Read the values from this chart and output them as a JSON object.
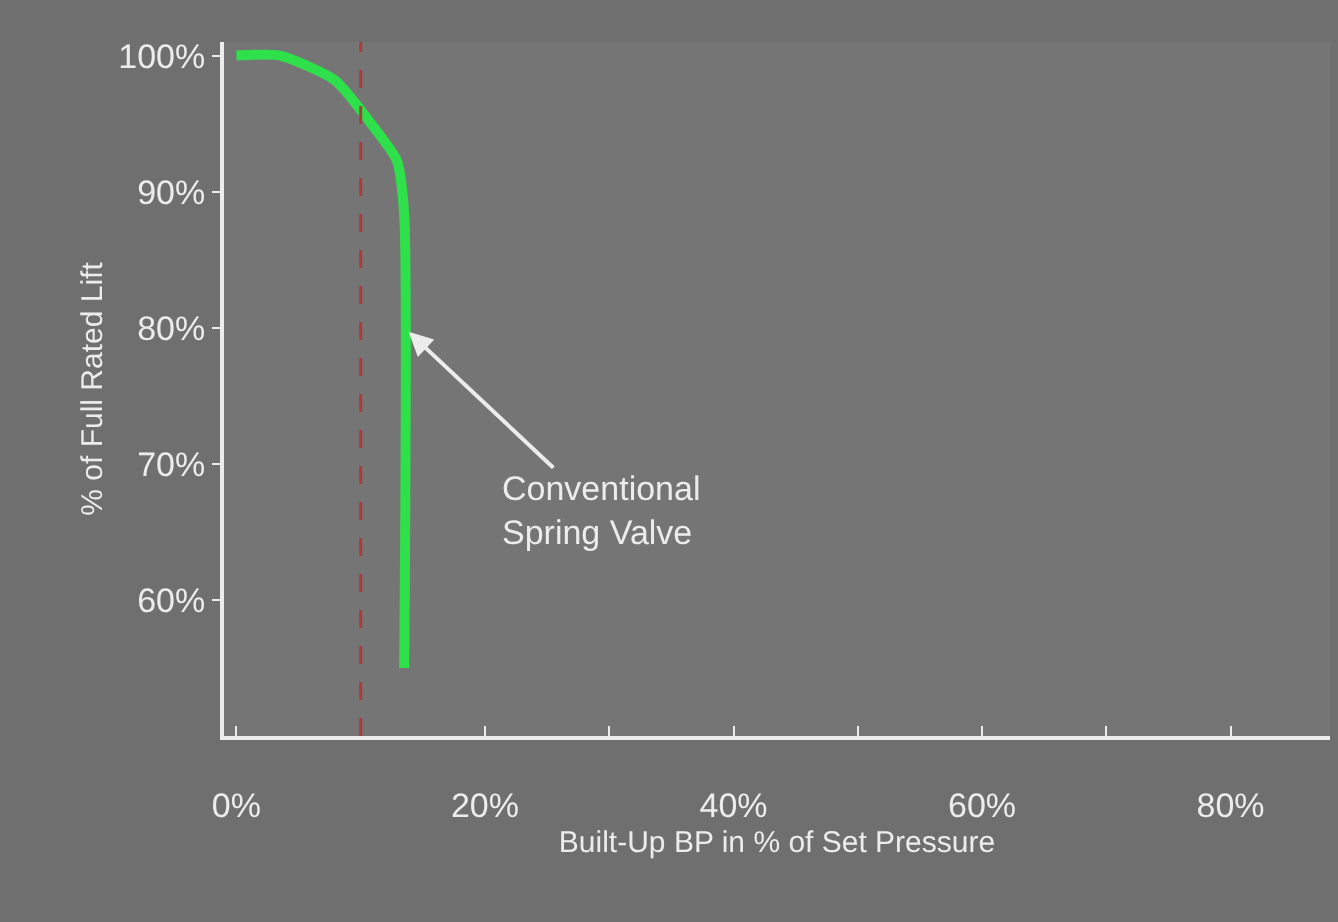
{
  "chart_data": {
    "type": "line",
    "xlabel": "Built-Up BP in % of Set Pressure",
    "ylabel": "% of Full Rated Lift",
    "x": [
      0,
      3.5,
      7.9,
      11,
      12.9,
      13.5,
      13.5
    ],
    "series": [
      {
        "color": "#2ee04a",
        "values": [
          100,
          100,
          98.2,
          94.8,
          92.3,
          88.3,
          55
        ]
      }
    ],
    "xlim": [
      -1,
      88
    ],
    "ylim": [
      50,
      101
    ],
    "xticks": [
      {
        "value": 0,
        "label": "0%"
      },
      {
        "value": 10,
        "label": null
      },
      {
        "value": 20,
        "label": "20%"
      },
      {
        "value": 30,
        "label": null
      },
      {
        "value": 40,
        "label": "40%"
      },
      {
        "value": 50,
        "label": null
      },
      {
        "value": 60,
        "label": "60%"
      },
      {
        "value": 70,
        "label": null
      },
      {
        "value": 80,
        "label": "80%"
      }
    ],
    "yticks": [
      {
        "value": 60,
        "label": "60%"
      },
      {
        "value": 70,
        "label": "70%"
      },
      {
        "value": 80,
        "label": "80%"
      },
      {
        "value": 90,
        "label": "90%"
      },
      {
        "value": 100,
        "label": "100%"
      }
    ],
    "ref_lines": [
      {
        "axis": "x",
        "value": 10,
        "label": null,
        "color": "#b03a3a",
        "line_style": "dashed"
      }
    ],
    "annotations": [
      {
        "text": "Conventional\nSpring Valve",
        "x": 13.5,
        "y": 80
      }
    ],
    "grid": false,
    "legend": false,
    "marker": "none",
    "line_style": "solid"
  }
}
